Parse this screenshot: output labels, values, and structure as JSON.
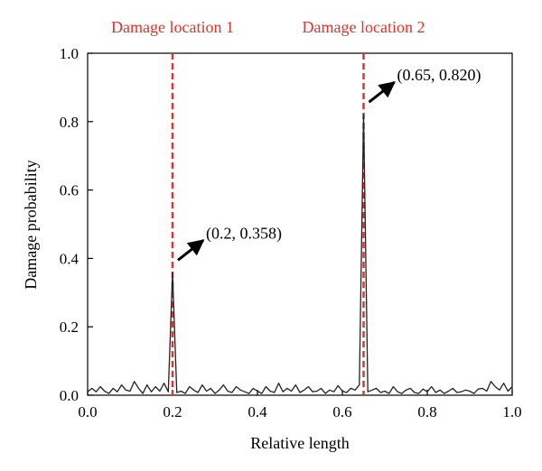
{
  "chart_data": {
    "type": "line",
    "title": "",
    "xlabel": "Relative length",
    "ylabel": "Damage probability",
    "xlim": [
      0.0,
      1.0
    ],
    "ylim": [
      0.0,
      1.0
    ],
    "xticks": [
      "0.0",
      "0.2",
      "0.4",
      "0.6",
      "0.8",
      "1.0"
    ],
    "yticks": [
      "0.0",
      "0.2",
      "0.4",
      "0.6",
      "0.8",
      "1.0"
    ],
    "grid": false,
    "legend": "none",
    "colors": {
      "line": "#222222",
      "damage_marker": "#e8302a",
      "arrow": "#000000"
    },
    "series": [
      {
        "x": [
          0.0,
          0.01,
          0.02,
          0.03,
          0.04,
          0.05,
          0.06,
          0.07,
          0.08,
          0.09,
          0.1,
          0.11,
          0.12,
          0.13,
          0.14,
          0.15,
          0.16,
          0.17,
          0.18,
          0.19,
          0.2,
          0.21,
          0.22,
          0.23,
          0.24,
          0.25,
          0.26,
          0.27,
          0.28,
          0.29,
          0.3,
          0.31,
          0.32,
          0.33,
          0.34,
          0.35,
          0.36,
          0.37,
          0.38,
          0.39,
          0.4,
          0.41,
          0.42,
          0.43,
          0.44,
          0.45,
          0.46,
          0.47,
          0.48,
          0.49,
          0.5,
          0.51,
          0.52,
          0.53,
          0.54,
          0.55,
          0.56,
          0.57,
          0.58,
          0.59,
          0.6,
          0.61,
          0.62,
          0.63,
          0.64,
          0.65,
          0.66,
          0.67,
          0.68,
          0.69,
          0.7,
          0.71,
          0.72,
          0.73,
          0.74,
          0.75,
          0.76,
          0.77,
          0.78,
          0.79,
          0.8,
          0.81,
          0.82,
          0.83,
          0.84,
          0.85,
          0.86,
          0.87,
          0.88,
          0.89,
          0.9,
          0.91,
          0.92,
          0.93,
          0.94,
          0.95,
          0.96,
          0.97,
          0.98,
          0.99,
          1.0
        ],
        "y": [
          0.01,
          0.02,
          0.01,
          0.025,
          0.012,
          0.005,
          0.02,
          0.01,
          0.03,
          0.015,
          0.012,
          0.04,
          0.02,
          0.005,
          0.03,
          0.01,
          0.025,
          0.012,
          0.035,
          0.01,
          0.358,
          0.008,
          0.012,
          0.005,
          0.025,
          0.015,
          0.008,
          0.03,
          0.012,
          0.02,
          0.005,
          0.015,
          0.03,
          0.012,
          0.008,
          0.025,
          0.015,
          0.01,
          0.005,
          0.02,
          0.012,
          0.005,
          0.025,
          0.012,
          0.008,
          0.035,
          0.01,
          0.02,
          0.012,
          0.03,
          0.008,
          0.015,
          0.025,
          0.01,
          0.012,
          0.02,
          0.005,
          0.015,
          0.01,
          0.028,
          0.012,
          0.008,
          0.02,
          0.015,
          0.03,
          0.82,
          0.01,
          0.015,
          0.02,
          0.008,
          0.012,
          0.005,
          0.025,
          0.01,
          0.005,
          0.015,
          0.02,
          0.008,
          0.005,
          0.018,
          0.01,
          0.025,
          0.008,
          0.015,
          0.005,
          0.012,
          0.02,
          0.008,
          0.01,
          0.015,
          0.012,
          0.005,
          0.018,
          0.02,
          0.012,
          0.04,
          0.025,
          0.015,
          0.035,
          0.012,
          0.025
        ]
      }
    ],
    "damage_locations": [
      {
        "label": "Damage location 1",
        "x": 0.2
      },
      {
        "label": "Damage location 2",
        "x": 0.65
      }
    ],
    "annotations": [
      {
        "text": "(0.2, 0.358)",
        "x": 0.2,
        "y": 0.358
      },
      {
        "text": "(0.65, 0.820)",
        "x": 0.65,
        "y": 0.82
      }
    ]
  }
}
